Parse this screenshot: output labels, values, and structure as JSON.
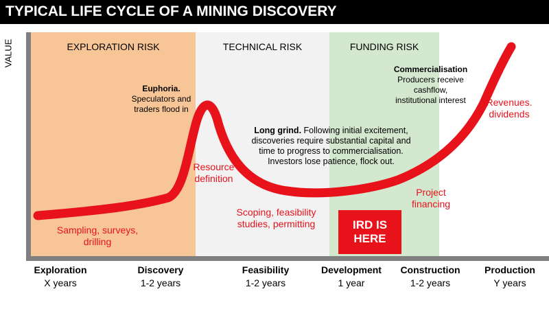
{
  "title": "TYPICAL LIFE CYCLE OF A MINING DISCOVERY",
  "axis": {
    "y_label": "VALUE"
  },
  "risk_zones": [
    {
      "label": "EXPLORATION RISK",
      "color": "#f8c597"
    },
    {
      "label": "TECHNICAL RISK",
      "color": "#f2f2f2"
    },
    {
      "label": "FUNDING RISK",
      "color": "#d3e8cf"
    }
  ],
  "curve_color": "#e8121b",
  "annotations": {
    "euphoria": {
      "heading": "Euphoria.",
      "line1": "Speculators and",
      "line2": "traders flood in"
    },
    "long_grind": {
      "heading": "Long grind.",
      "line1_rest": " Following initial excitement,",
      "line2": "discoveries require substantial capital and",
      "line3": "time to progress to commercialisation.",
      "line4": "Investors lose patience, flock out."
    },
    "commercialisation": {
      "heading": "Commercialisation",
      "line1": "Producers receive",
      "line2": "cashflow,",
      "line3": "institutional interest"
    }
  },
  "red_labels": {
    "sampling": {
      "line1": "Sampling, surveys,",
      "line2": "drilling"
    },
    "resource": {
      "line1": "Resource",
      "line2": "definition"
    },
    "scoping": {
      "line1": "Scoping, feasibility",
      "line2": "studies, permitting"
    },
    "project": {
      "line1": "Project",
      "line2": "financing"
    },
    "revenues": {
      "line1": "Revenues.",
      "line2": "dividends"
    }
  },
  "ird_badge": {
    "line1": "IRD IS",
    "line2": "HERE",
    "color": "#e8121b"
  },
  "stages": [
    {
      "name": "Exploration",
      "duration": "X years"
    },
    {
      "name": "Discovery",
      "duration": "1-2 years"
    },
    {
      "name": "Feasibility",
      "duration": "1-2 years"
    },
    {
      "name": "Development",
      "duration": "1 year"
    },
    {
      "name": "Construction",
      "duration": "1-2 years"
    },
    {
      "name": "Production",
      "duration": "Y years"
    }
  ]
}
